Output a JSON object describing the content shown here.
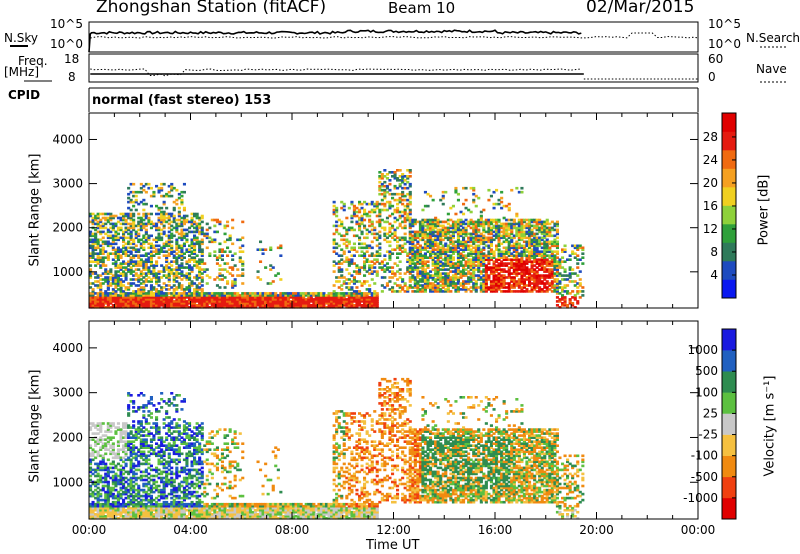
{
  "header": {
    "station": "Zhongshan Station (fitACF)",
    "beam": "Beam 10",
    "date": "02/Mar/2015"
  },
  "top_panels": {
    "nsky_label": "N.Sky",
    "nsky_ticks": [
      "10^5",
      "10^0"
    ],
    "nsearch_ticks": [
      "10^5",
      "10^0"
    ],
    "nsearch_label": "N.Search",
    "freq_label": "Freq.",
    "freq_unit": "[MHz]",
    "freq_ticks": [
      "18",
      "8"
    ],
    "nave_ticks": [
      "60",
      "0"
    ],
    "nave_label": "Nave",
    "cpid_label": "CPID",
    "cpid_value": "normal (fast stereo) 153"
  },
  "chart_data": [
    {
      "type": "heatmap",
      "name": "power",
      "ylabel": "Slant Range [km]",
      "yticks": [
        1000,
        2000,
        3000,
        4000
      ],
      "ylim": [
        180,
        4600
      ],
      "xlim": [
        0,
        24
      ],
      "colorbar_label": "Power [dB]",
      "colorbar_ticks": [
        "4",
        "8",
        "12",
        "16",
        "20",
        "24",
        "28"
      ],
      "colors": [
        "#0a18f0",
        "#1e4bbf",
        "#2f7a5a",
        "#2fa03a",
        "#8ed13a",
        "#f0d020",
        "#f5a020",
        "#f06a10",
        "#e51b10",
        "#e00000"
      ]
    },
    {
      "type": "heatmap",
      "name": "velocity",
      "ylabel": "Slant Range [km]",
      "yticks": [
        1000,
        2000,
        3000,
        4000
      ],
      "ylim": [
        180,
        4600
      ],
      "xlim": [
        0,
        24
      ],
      "xlabel": "Time UT",
      "xticks": [
        "00:00",
        "04:00",
        "08:00",
        "12:00",
        "16:00",
        "20:00",
        "00:00"
      ],
      "colorbar_label": "Velocity [m s⁻¹]",
      "colorbar_ticks": [
        "1000",
        "500",
        "100",
        "25",
        "-25",
        "-100",
        "-500",
        "-1000"
      ],
      "colors": [
        "#1a1ae0",
        "#2060c0",
        "#2e8c50",
        "#5cc040",
        "#c8c8c8",
        "#f5c040",
        "#f08a10",
        "#f04010",
        "#e00000"
      ]
    }
  ]
}
